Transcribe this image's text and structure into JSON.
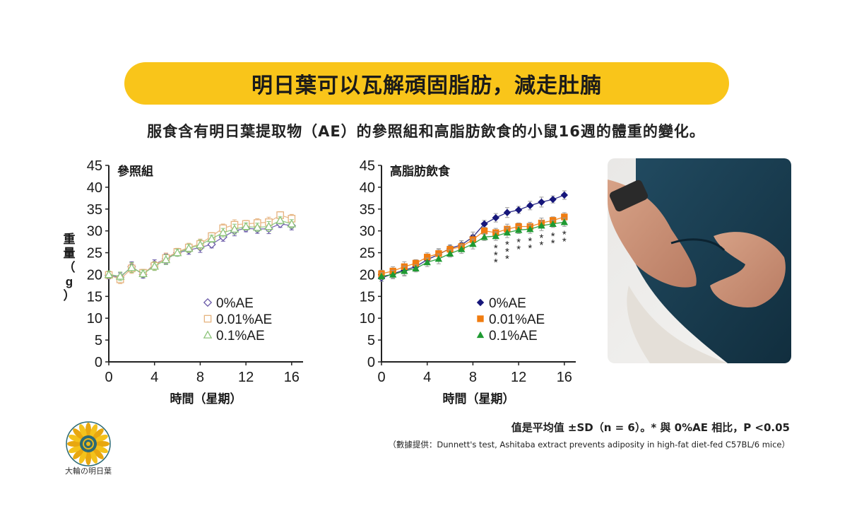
{
  "title": "明日葉可以瓦解頑固脂肪，減走肚腩",
  "subtitle": "服食含有明日葉提取物（AE）的參照組和高脂肪飲食的小鼠16週的體重的變化。",
  "note": "值是平均值 ±SD（n = 6）。* 與 0%AE 相比，P <0.05",
  "source": "（數據提供：Dunnett's test, Ashitaba extract prevents adiposity in high-fat diet-fed C57BL/6 mice）",
  "brand": "大輪の明日葉",
  "photo": {
    "icon": "belly-photo"
  },
  "colors": {
    "accent": "#f9c51a",
    "ae0_ctrl": "#6a5aa8",
    "ae001_ctrl": "#e6b37f",
    "ae01_ctrl": "#8cc47a",
    "ae0_hfd": "#16167a",
    "ae001_hfd": "#f07c10",
    "ae01_hfd": "#1f9a32"
  },
  "chart_data": [
    {
      "type": "line",
      "title": "參照組",
      "xlabel": "時間（星期）",
      "ylabel": "重量（g）",
      "xlim": [
        0,
        17
      ],
      "ylim": [
        0,
        45
      ],
      "xticks": [
        0,
        4,
        8,
        12,
        16
      ],
      "yticks": [
        0,
        5,
        10,
        15,
        20,
        25,
        30,
        35,
        40,
        45
      ],
      "x": [
        0,
        1,
        2,
        3,
        4,
        5,
        6,
        7,
        8,
        9,
        10,
        11,
        12,
        13,
        14,
        15,
        16
      ],
      "marker_fill": "open",
      "series": [
        {
          "name": "0%AE",
          "marker": "diamond",
          "color_key": "ae0_ctrl",
          "values": [
            19.8,
            19.4,
            21.8,
            20.0,
            22.4,
            23.6,
            25.0,
            25.6,
            26.2,
            26.9,
            28.6,
            30.0,
            30.6,
            30.4,
            30.5,
            31.6,
            31.2
          ]
        },
        {
          "name": "0.01%AE",
          "marker": "square",
          "color_key": "ae001_ctrl",
          "values": [
            19.9,
            18.9,
            21.4,
            20.4,
            22.0,
            23.8,
            25.2,
            26.2,
            27.0,
            28.8,
            30.6,
            31.4,
            31.6,
            31.8,
            32.0,
            33.6,
            32.8
          ]
        },
        {
          "name": "0.1%AE",
          "marker": "triangle",
          "color_key": "ae01_ctrl",
          "values": [
            20.0,
            19.6,
            21.6,
            20.2,
            21.9,
            23.4,
            25.0,
            26.0,
            26.8,
            28.2,
            29.6,
            30.4,
            31.0,
            30.8,
            31.0,
            32.4,
            31.6
          ]
        }
      ]
    },
    {
      "type": "line",
      "title": "高脂肪飲食",
      "xlabel": "時間（星期）",
      "ylabel": "",
      "xlim": [
        0,
        17
      ],
      "ylim": [
        0,
        45
      ],
      "xticks": [
        0,
        4,
        8,
        12,
        16
      ],
      "yticks": [
        0,
        5,
        10,
        15,
        20,
        25,
        30,
        35,
        40,
        45
      ],
      "x": [
        0,
        1,
        2,
        3,
        4,
        5,
        6,
        7,
        8,
        9,
        10,
        11,
        12,
        13,
        14,
        15,
        16
      ],
      "marker_fill": "solid",
      "significance_mark": "*",
      "significant_x": [
        10,
        11,
        12,
        13,
        14,
        15,
        16
      ],
      "series": [
        {
          "name": "0%AE",
          "marker": "diamond",
          "color_key": "ae0_hfd",
          "values": [
            19.2,
            20.2,
            21.0,
            21.8,
            23.4,
            24.6,
            26.0,
            26.8,
            28.6,
            31.6,
            33.0,
            34.2,
            34.8,
            35.8,
            36.6,
            37.2,
            38.2
          ]
        },
        {
          "name": "0.01%AE",
          "marker": "square",
          "color_key": "ae001_hfd",
          "values": [
            20.2,
            20.8,
            21.8,
            22.6,
            24.0,
            24.8,
            25.8,
            26.4,
            28.0,
            30.0,
            29.6,
            30.4,
            31.0,
            31.0,
            31.8,
            32.4,
            33.2
          ]
        },
        {
          "name": "0.1%AE",
          "marker": "triangle",
          "color_key": "ae01_hfd",
          "values": [
            19.6,
            20.0,
            20.8,
            21.4,
            22.8,
            23.6,
            24.8,
            25.8,
            27.0,
            28.6,
            28.8,
            29.6,
            30.2,
            30.4,
            31.2,
            31.6,
            32.0
          ]
        }
      ]
    }
  ]
}
